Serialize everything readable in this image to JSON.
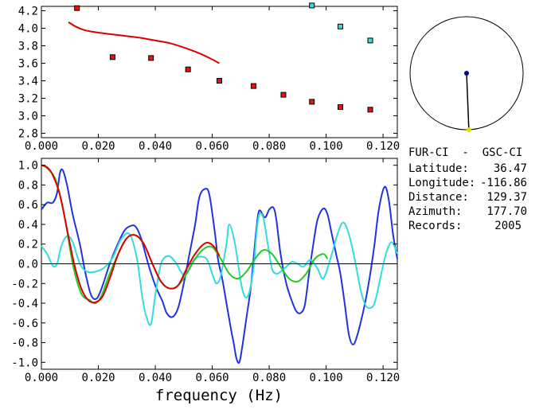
{
  "chart_data": [
    {
      "type": "scatter",
      "xlim": [
        0.0,
        0.125
      ],
      "ylim": [
        2.75,
        4.25
      ],
      "xticks": [
        "0.000",
        "0.020",
        "0.040",
        "0.060",
        "0.080",
        "0.100",
        "0.120"
      ],
      "xtick_values": [
        0.0,
        0.02,
        0.04,
        0.06,
        0.08,
        0.1,
        0.12
      ],
      "yticks": [
        "2.8",
        "3.0",
        "3.2",
        "3.4",
        "3.6",
        "3.8",
        "4.0",
        "4.2"
      ],
      "ytick_values": [
        2.8,
        3.0,
        3.2,
        3.4,
        3.6,
        3.8,
        4.0,
        4.2
      ],
      "series": [
        {
          "kind": "points",
          "color": "#ee1111",
          "x": [
            0.0125,
            0.025,
            0.0385,
            0.0515,
            0.0625,
            0.0745,
            0.085,
            0.095,
            0.105,
            0.1155
          ],
          "y": [
            4.23,
            3.67,
            3.66,
            3.53,
            3.4,
            3.34,
            3.24,
            3.16,
            3.1,
            3.07
          ]
        },
        {
          "kind": "points",
          "color": "#33dddd",
          "x": [
            0.095,
            0.105,
            0.1155
          ],
          "y": [
            4.26,
            4.02,
            3.86
          ]
        },
        {
          "kind": "line",
          "color": "#dd0000",
          "x": [
            0.0095,
            0.012,
            0.015,
            0.018,
            0.021,
            0.025,
            0.03,
            0.035,
            0.04,
            0.045,
            0.05,
            0.055,
            0.059,
            0.0625
          ],
          "y": [
            4.07,
            4.02,
            3.98,
            3.96,
            3.945,
            3.93,
            3.91,
            3.89,
            3.86,
            3.83,
            3.78,
            3.72,
            3.66,
            3.6
          ]
        }
      ]
    },
    {
      "type": "line",
      "xlabel": "frequency (Hz)",
      "xlim": [
        0.0,
        0.125
      ],
      "ylim": [
        -1.07,
        1.07
      ],
      "xticks": [
        "0.000",
        "0.020",
        "0.040",
        "0.060",
        "0.080",
        "0.100",
        "0.120"
      ],
      "xtick_values": [
        0.0,
        0.02,
        0.04,
        0.06,
        0.08,
        0.1,
        0.12
      ],
      "yticks": [
        "1.0",
        "0.8",
        "0.6",
        "0.4",
        "0.2",
        "0.0",
        "-0.2",
        "-0.4",
        "-0.6",
        "-0.8",
        "-1.0"
      ],
      "ytick_values": [
        1.0,
        0.8,
        0.6,
        0.4,
        0.2,
        0.0,
        -0.2,
        -0.4,
        -0.6,
        -0.8,
        -1.0
      ],
      "zero_line": true,
      "series": [
        {
          "color": "#2233dd",
          "x": [
            0.0,
            0.002,
            0.004,
            0.0055,
            0.0065,
            0.0075,
            0.009,
            0.011,
            0.0135,
            0.0155,
            0.0175,
            0.0195,
            0.0215,
            0.024,
            0.0265,
            0.029,
            0.031,
            0.033,
            0.035,
            0.0375,
            0.04,
            0.0425,
            0.044,
            0.046,
            0.048,
            0.05,
            0.052,
            0.054,
            0.0555,
            0.0575,
            0.059,
            0.061,
            0.062,
            0.0635,
            0.065,
            0.0665,
            0.0675,
            0.0685,
            0.0695,
            0.0705,
            0.072,
            0.0735,
            0.0745,
            0.0755,
            0.0765,
            0.0785,
            0.08,
            0.0815,
            0.0825,
            0.084,
            0.086,
            0.088,
            0.0895,
            0.091,
            0.0925,
            0.094,
            0.0955,
            0.097,
            0.099,
            0.1005,
            0.102,
            0.1035,
            0.105,
            0.1065,
            0.108,
            0.1095,
            0.111,
            0.1125,
            0.114,
            0.1155,
            0.117,
            0.1185,
            0.1205,
            0.122,
            0.1235,
            0.125
          ],
          "y": [
            0.55,
            0.62,
            0.62,
            0.72,
            0.92,
            0.95,
            0.8,
            0.5,
            0.2,
            -0.1,
            -0.32,
            -0.35,
            -0.22,
            0.0,
            0.18,
            0.33,
            0.38,
            0.38,
            0.26,
            0.0,
            -0.22,
            -0.38,
            -0.5,
            -0.54,
            -0.45,
            -0.2,
            0.1,
            0.4,
            0.68,
            0.76,
            0.7,
            0.3,
            0.05,
            -0.15,
            -0.4,
            -0.65,
            -0.8,
            -0.96,
            -1.0,
            -0.85,
            -0.55,
            -0.25,
            0.05,
            0.35,
            0.54,
            0.47,
            0.55,
            0.57,
            0.45,
            0.1,
            -0.2,
            -0.38,
            -0.48,
            -0.5,
            -0.42,
            -0.1,
            0.2,
            0.45,
            0.56,
            0.5,
            0.3,
            0.1,
            -0.1,
            -0.4,
            -0.72,
            -0.82,
            -0.72,
            -0.55,
            -0.35,
            -0.1,
            0.2,
            0.55,
            0.78,
            0.65,
            0.3,
            0.05
          ]
        },
        {
          "color": "#33dddd",
          "x": [
            0.0,
            0.002,
            0.004,
            0.0055,
            0.007,
            0.009,
            0.011,
            0.0135,
            0.016,
            0.019,
            0.022,
            0.025,
            0.028,
            0.031,
            0.0335,
            0.0355,
            0.037,
            0.0385,
            0.04,
            0.042,
            0.0445,
            0.047,
            0.0495,
            0.051,
            0.053,
            0.055,
            0.058,
            0.06,
            0.0615,
            0.063,
            0.065,
            0.066,
            0.068,
            0.0705,
            0.0725,
            0.0745,
            0.0755,
            0.0765,
            0.078,
            0.0795,
            0.081,
            0.0825,
            0.084,
            0.086,
            0.088,
            0.09,
            0.092,
            0.0945,
            0.097,
            0.099,
            0.1015,
            0.104,
            0.106,
            0.108,
            0.11,
            0.112,
            0.1135,
            0.115,
            0.117,
            0.119,
            0.121,
            0.123,
            0.125
          ],
          "y": [
            0.18,
            0.1,
            -0.02,
            0.0,
            0.18,
            0.28,
            0.22,
            0.0,
            -0.08,
            -0.08,
            -0.04,
            0.06,
            0.25,
            0.3,
            0.06,
            -0.35,
            -0.55,
            -0.61,
            -0.32,
            0.0,
            0.08,
            0.02,
            -0.1,
            -0.1,
            0.02,
            0.07,
            0.05,
            -0.1,
            -0.2,
            -0.12,
            0.2,
            0.4,
            0.2,
            -0.25,
            -0.33,
            -0.05,
            0.3,
            0.5,
            0.46,
            0.2,
            -0.05,
            -0.1,
            -0.08,
            -0.03,
            0.02,
            0.0,
            -0.03,
            0.04,
            -0.05,
            -0.15,
            0.05,
            0.3,
            0.42,
            0.3,
            0.05,
            -0.25,
            -0.4,
            -0.45,
            -0.4,
            -0.15,
            0.1,
            0.22,
            0.1
          ]
        },
        {
          "color": "#22cc22",
          "x": [
            0.0,
            0.002,
            0.005,
            0.008,
            0.011,
            0.014,
            0.017,
            0.019,
            0.021,
            0.024,
            0.027,
            0.03,
            0.033,
            0.036,
            0.039,
            0.042,
            0.045,
            0.048,
            0.051,
            0.054,
            0.057,
            0.06,
            0.063,
            0.066,
            0.069,
            0.072,
            0.075,
            0.078,
            0.081,
            0.084,
            0.087,
            0.09,
            0.093,
            0.096,
            0.099,
            0.1005
          ],
          "y": [
            1.0,
            0.97,
            0.85,
            0.5,
            0.0,
            -0.3,
            -0.37,
            -0.4,
            -0.33,
            -0.1,
            0.1,
            0.26,
            0.29,
            0.2,
            0.0,
            -0.18,
            -0.25,
            -0.22,
            -0.1,
            0.05,
            0.15,
            0.17,
            0.05,
            -0.1,
            -0.15,
            -0.08,
            0.05,
            0.14,
            0.1,
            -0.03,
            -0.15,
            -0.18,
            -0.1,
            0.05,
            0.1,
            0.05
          ]
        },
        {
          "color": "#dd0000",
          "x": [
            0.0,
            0.002,
            0.004,
            0.0065,
            0.009,
            0.0115,
            0.014,
            0.0165,
            0.019,
            0.0215,
            0.024,
            0.027,
            0.03,
            0.033,
            0.036,
            0.039,
            0.042,
            0.045,
            0.048,
            0.051,
            0.054,
            0.057,
            0.059,
            0.061,
            0.0625
          ],
          "y": [
            1.0,
            0.98,
            0.9,
            0.7,
            0.35,
            0.0,
            -0.25,
            -0.37,
            -0.39,
            -0.33,
            -0.15,
            0.1,
            0.26,
            0.29,
            0.2,
            0.0,
            -0.18,
            -0.25,
            -0.22,
            -0.05,
            0.1,
            0.2,
            0.21,
            0.16,
            0.08
          ]
        }
      ]
    }
  ],
  "azimuth_plot": {
    "azimuth_deg": 177.7,
    "circle_color": "#000000",
    "center_dot_color": "#000088",
    "tip_dot_color": "#dddd00"
  },
  "info": {
    "pair": "FUR-CI  -  GSC-CI",
    "rows": [
      {
        "label": "Latitude:",
        "value": "36.47"
      },
      {
        "label": "Longitude:",
        "value": "-116.86"
      },
      {
        "label": "Distance:",
        "value": "129.37"
      },
      {
        "label": "Azimuth:",
        "value": "177.70"
      },
      {
        "label": "Records:",
        "value": "2005"
      }
    ]
  }
}
